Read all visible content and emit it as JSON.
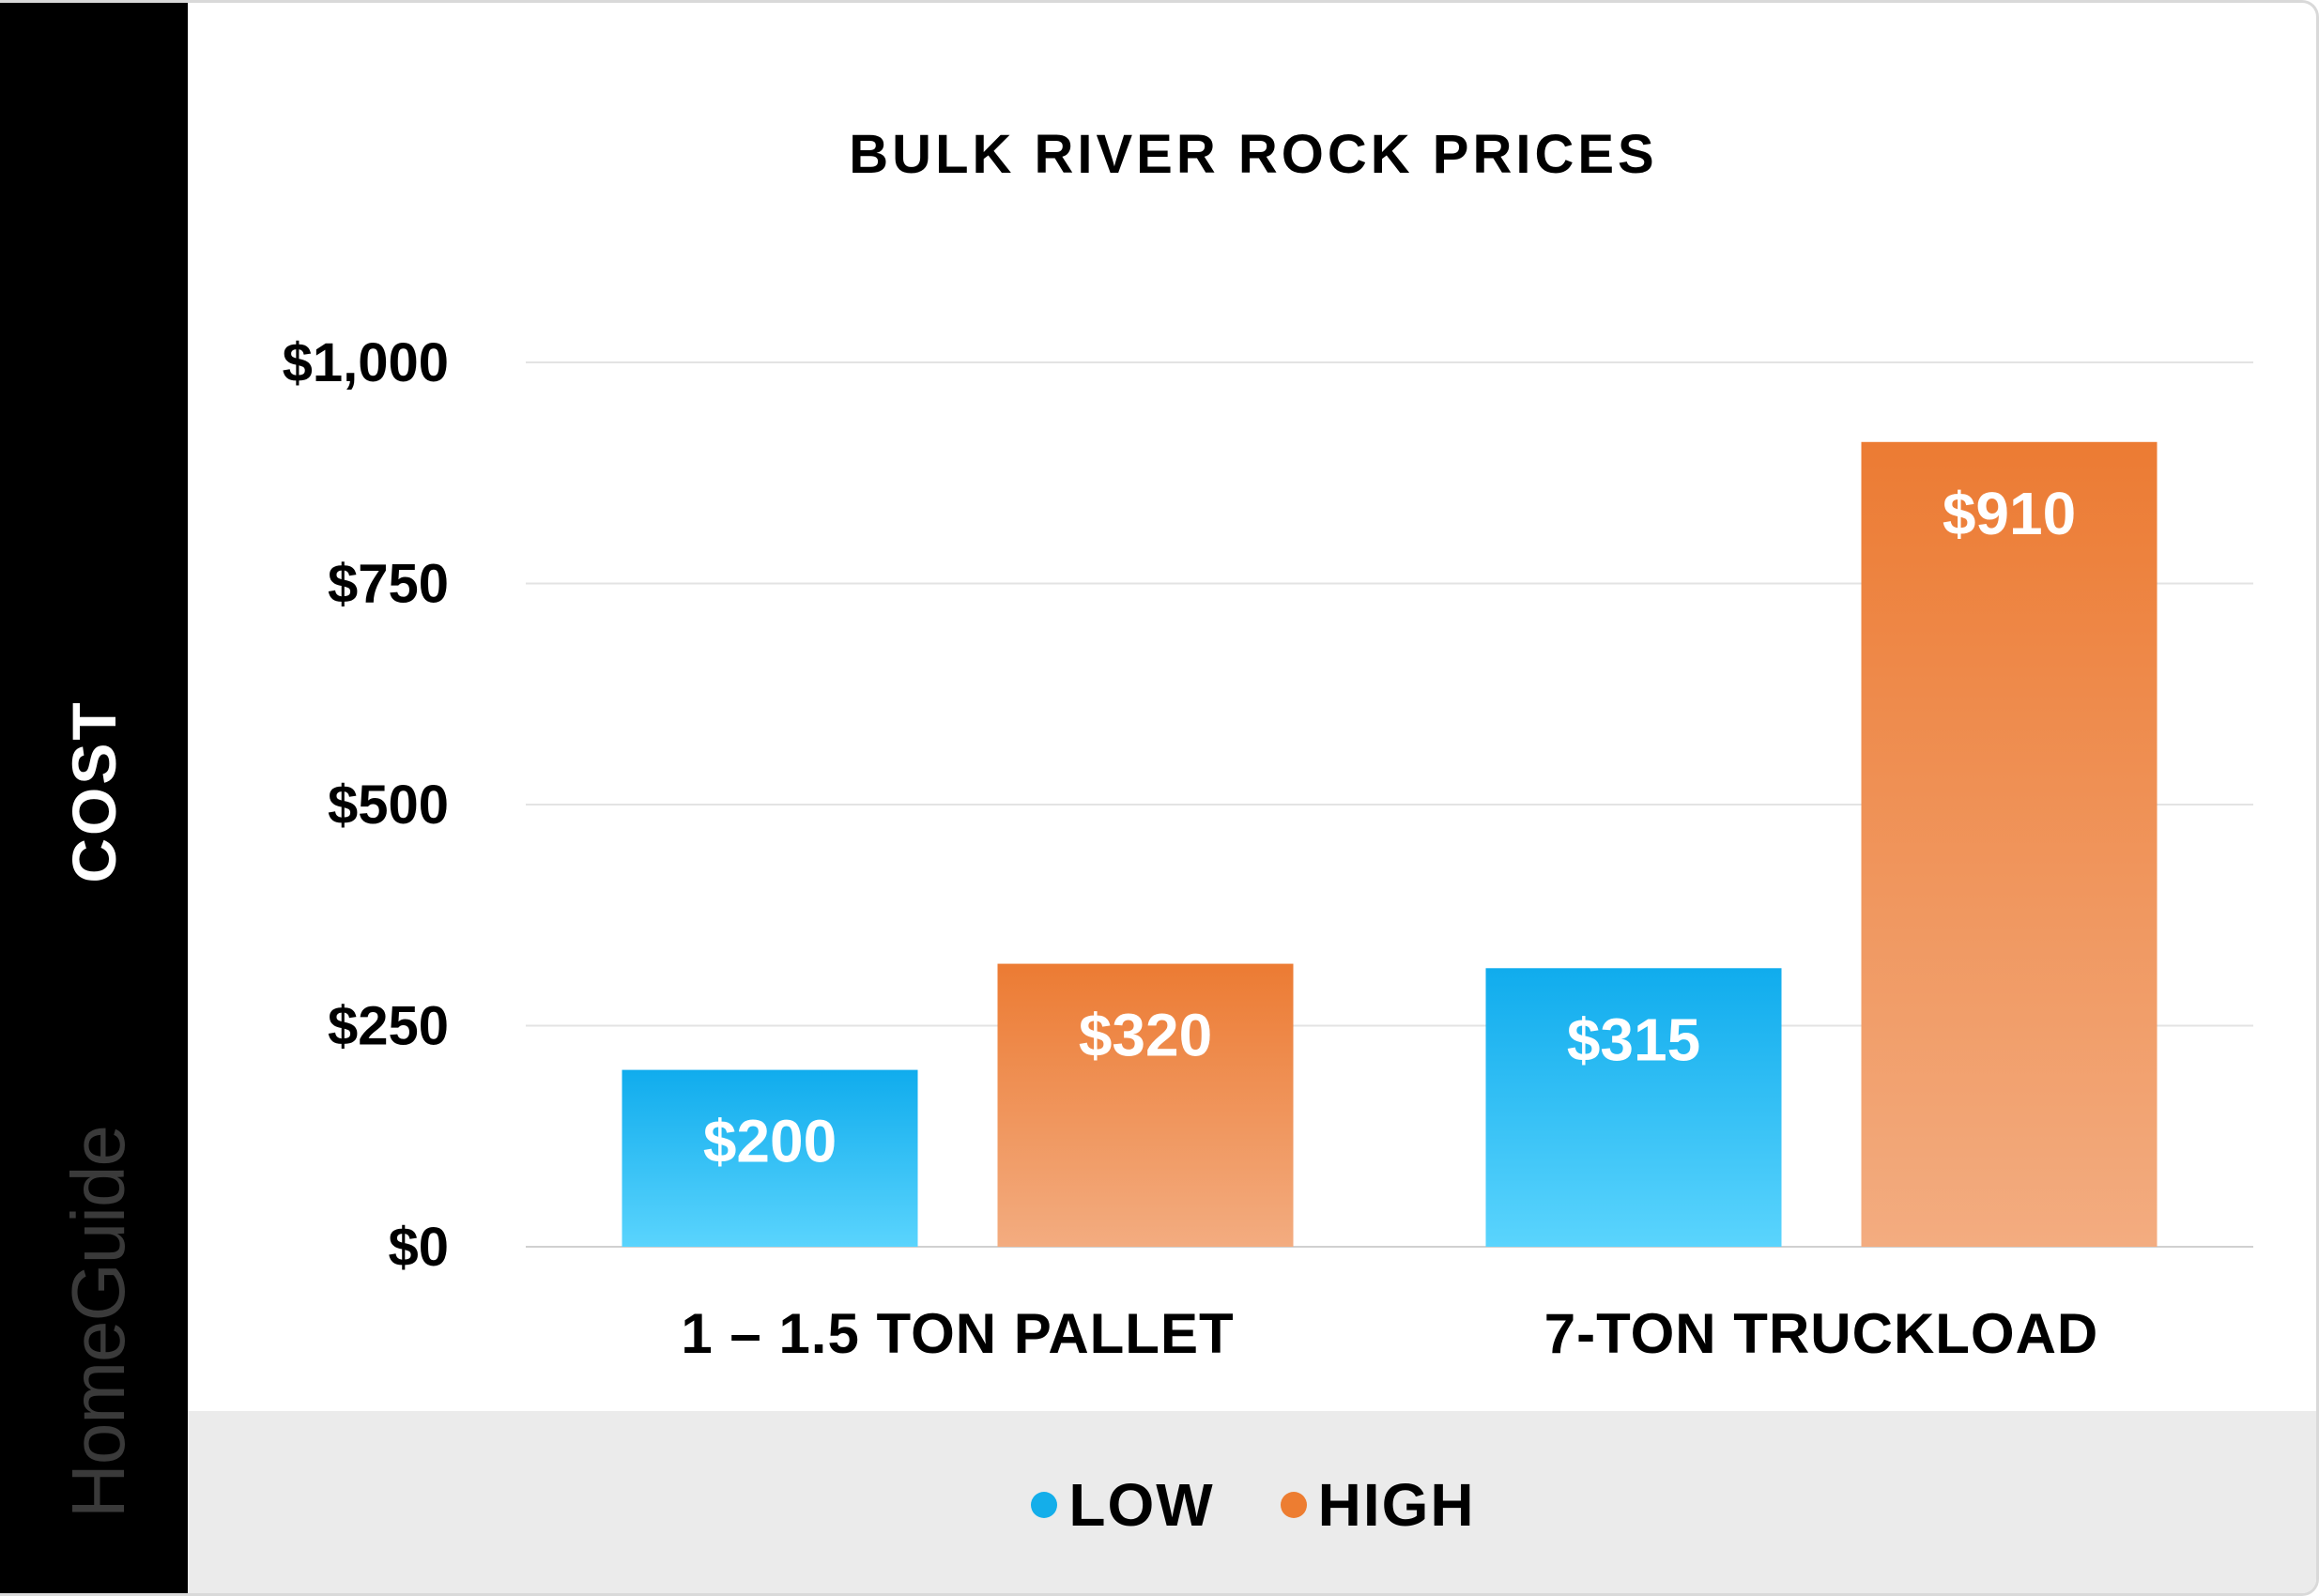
{
  "brand": "HomeGuide",
  "legend": [
    {
      "label": "LOW",
      "color": "#14aeea"
    },
    {
      "label": "HIGH",
      "color": "#ed7d31"
    }
  ],
  "chart_data": {
    "type": "bar",
    "title": "BULK RIVER ROCK PRICES",
    "ylabel": "COST",
    "xlabel": "",
    "categories": [
      "1 – 1.5 TON PALLET",
      "7-TON TRUCKLOAD"
    ],
    "series": [
      {
        "name": "LOW",
        "values": [
          200,
          315
        ],
        "color": "#14aeea",
        "labels": [
          "$200",
          "$315"
        ]
      },
      {
        "name": "HIGH",
        "values": [
          320,
          910
        ],
        "color": "#ed7d31",
        "labels": [
          "$320",
          "$910"
        ]
      }
    ],
    "ylim": [
      0,
      1000
    ],
    "yticks": [
      0,
      250,
      500,
      750,
      1000
    ],
    "ytick_labels": [
      "$0",
      "$250",
      "$500",
      "$750",
      "$1,000"
    ],
    "grid": true,
    "legend_position": "bottom"
  }
}
